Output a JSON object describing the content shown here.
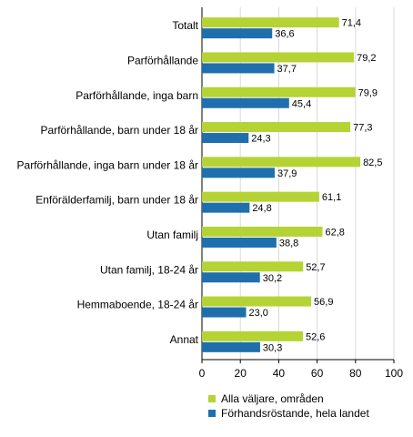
{
  "chart_data": {
    "type": "bar",
    "orientation": "horizontal",
    "title": "",
    "xlabel": "",
    "ylabel": "",
    "categories": [
      "Totalt",
      "Parförhållande",
      "Parförhållande, inga barn",
      "Parförhållande, barn under 18 år",
      "Parförhållande, inga barn under 18 år",
      "Enförälderfamilj, barn under 18 år",
      "Utan familj",
      "Utan familj, 18-24 år",
      "Hemmaboende, 18-24 år",
      "Annat"
    ],
    "series": [
      {
        "name": "Alla väljare, områden",
        "color": "#b5d334",
        "values": [
          71.4,
          79.2,
          79.9,
          77.3,
          82.5,
          61.1,
          62.8,
          52.7,
          56.9,
          52.6
        ],
        "labels": [
          "71,4",
          "79,2",
          "79,9",
          "77,3",
          "82,5",
          "61,1",
          "62,8",
          "52,7",
          "56,9",
          "52,6"
        ]
      },
      {
        "name": "Förhandsröstande, hela landet",
        "color": "#1f6fad",
        "values": [
          36.6,
          37.7,
          45.4,
          24.3,
          37.9,
          24.8,
          38.8,
          30.2,
          23.0,
          30.3
        ],
        "labels": [
          "36,6",
          "37,7",
          "45,4",
          "24,3",
          "37,9",
          "24,8",
          "38,8",
          "30,2",
          "23,0",
          "30,3"
        ]
      }
    ],
    "xlim": [
      0,
      100
    ],
    "xticks": [
      "0",
      "20",
      "40",
      "60",
      "80",
      "100"
    ],
    "grid": true,
    "legend_position": "bottom"
  }
}
